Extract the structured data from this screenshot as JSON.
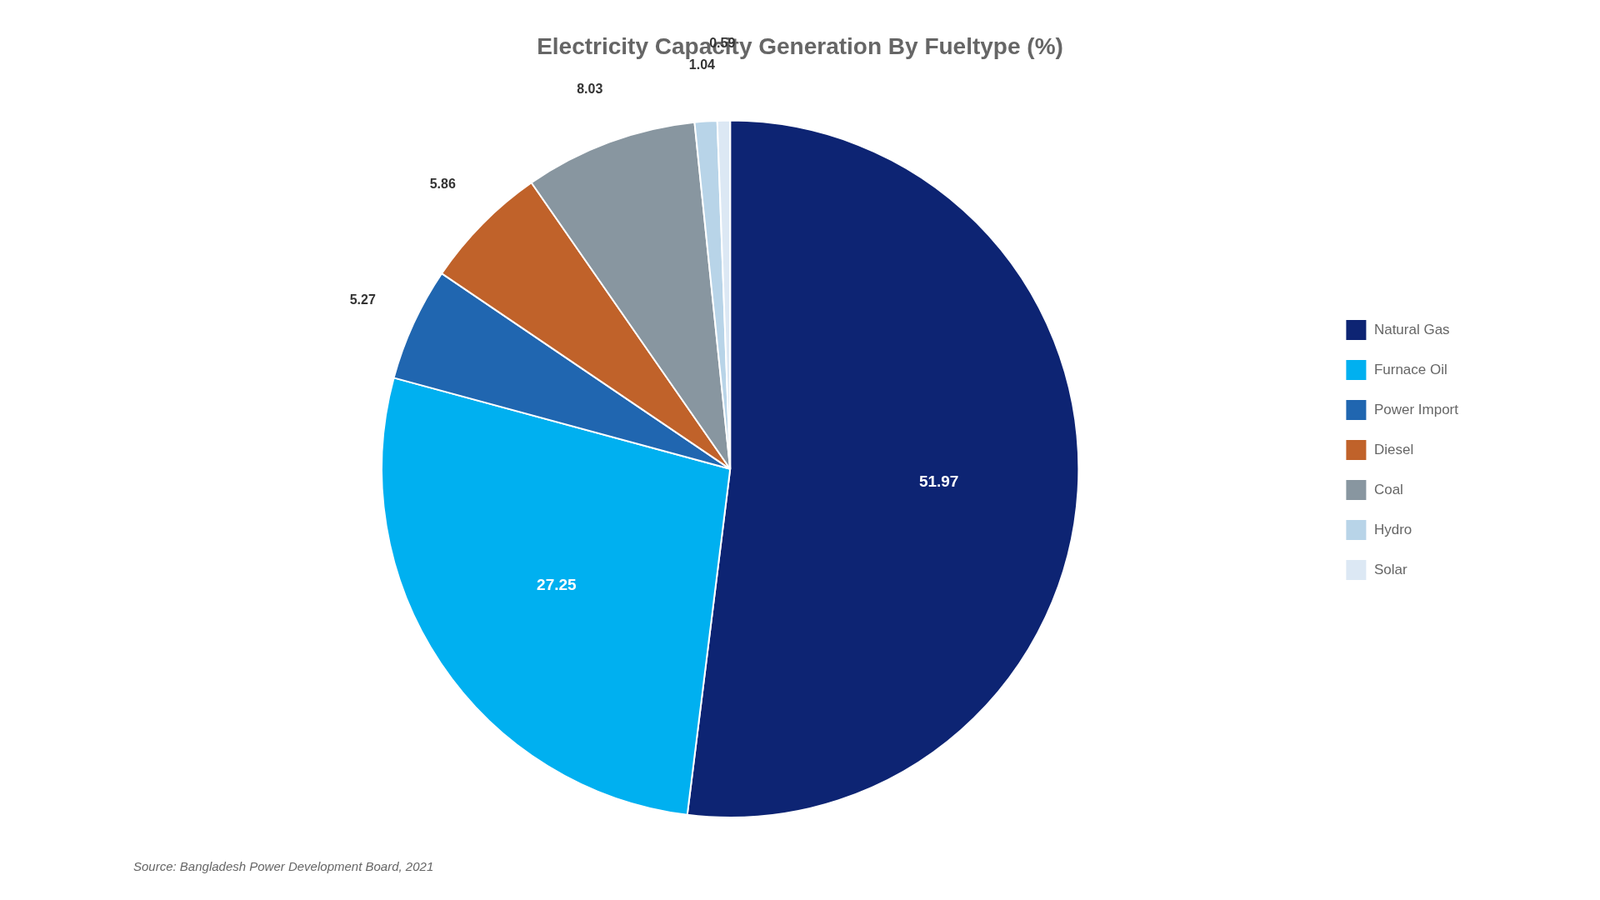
{
  "chart_data": {
    "type": "pie",
    "title": "Electricity Capacity Generation By Fueltype (%)",
    "categories": [
      "Natural Gas",
      "Furnace Oil",
      "Power Import",
      "Diesel",
      "Coal",
      "Hydro",
      "Solar"
    ],
    "values": [
      51.97,
      27.25,
      5.27,
      5.86,
      8.03,
      1.04,
      0.59
    ],
    "colors": [
      "#0d2473",
      "#00b0f0",
      "#2066b0",
      "#c0622a",
      "#8896a0",
      "#b8d4e8",
      "#dce8f4"
    ],
    "data_labels": true,
    "legend": "right",
    "annotations": [
      "Source: Bangladesh Power Development Board, 2021"
    ]
  }
}
